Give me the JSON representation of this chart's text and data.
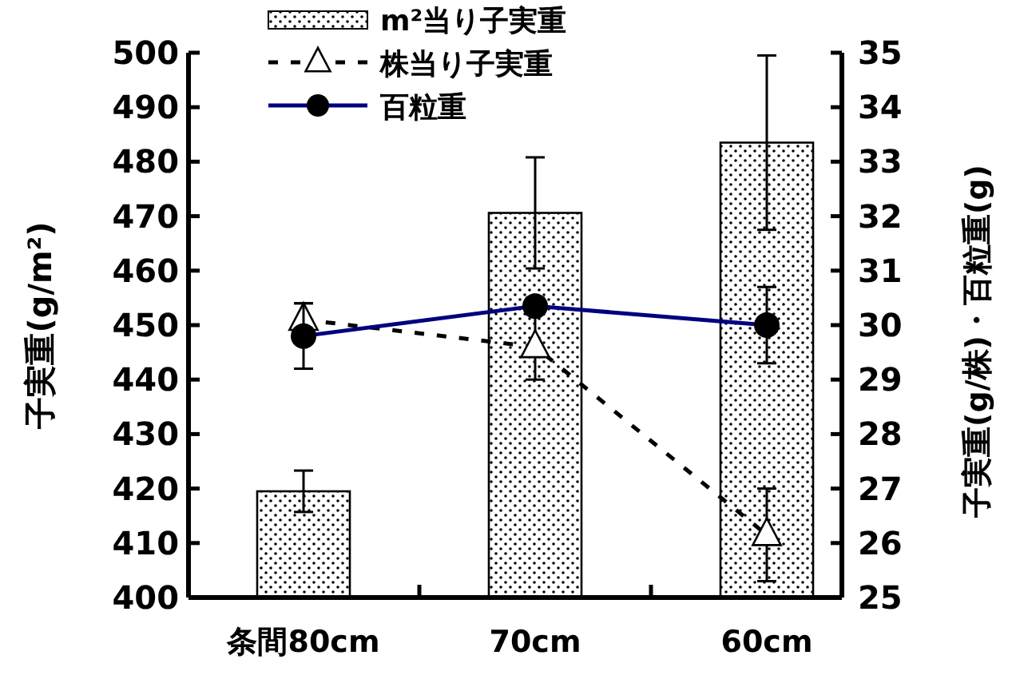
{
  "chart_data": {
    "type": "bar",
    "categories": [
      "条間80cm",
      "70cm",
      "60cm"
    ],
    "ylabel": "子実重(g/m²)",
    "y2label": "子実重(g/株)・百粒重(g)",
    "ylim": [
      400,
      500
    ],
    "yticks": [
      400,
      410,
      420,
      430,
      440,
      450,
      460,
      470,
      480,
      490,
      500
    ],
    "y2lim": [
      25,
      35
    ],
    "y2ticks": [
      25,
      26,
      27,
      28,
      29,
      30,
      31,
      32,
      33,
      34,
      35
    ],
    "legend": "top",
    "grid": false,
    "series": [
      {
        "name": "m²当り子実重",
        "color": "#000000",
        "values": [
          419.5,
          470.6,
          483.5
        ],
        "errors": [
          3.8,
          10.2,
          16
        ]
      },
      {
        "name": "株当り子実重",
        "type": "line",
        "axis": "y2",
        "color": "#000000",
        "marker": "triangle",
        "line_style": "dashed",
        "values": [
          30.1,
          29.6,
          26.15
        ],
        "errors": [
          0.3,
          0.6,
          0.85
        ]
      },
      {
        "name": "百粒重",
        "type": "line",
        "axis": "y2",
        "color": "#000080",
        "marker": "circle",
        "line_style": "solid",
        "values": [
          29.8,
          30.35,
          30.0
        ],
        "errors": [
          0.6,
          0.15,
          0.7
        ]
      }
    ]
  }
}
